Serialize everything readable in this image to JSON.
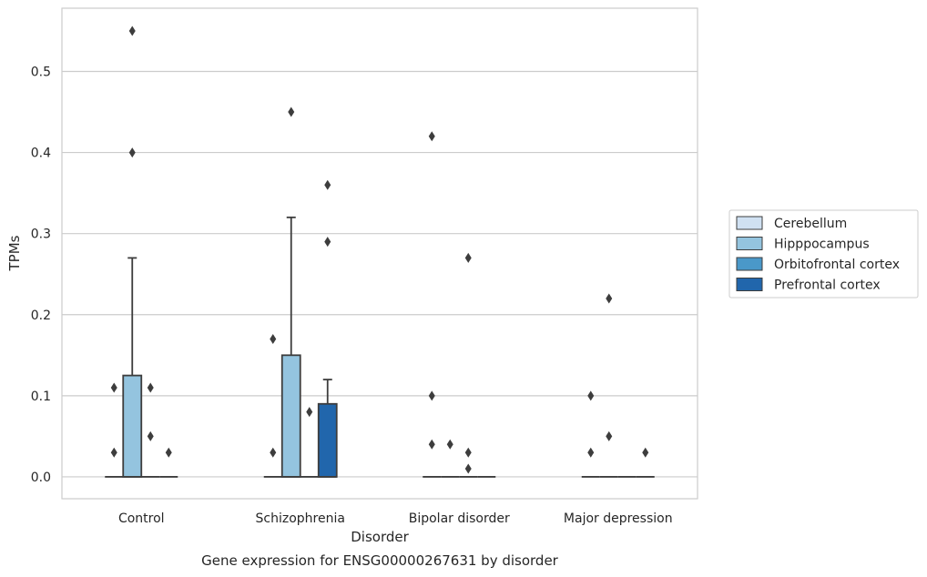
{
  "caption": "Gene expression for ENSG00000267631 by disorder",
  "chart_data": {
    "type": "boxplot",
    "xlabel": "Disorder",
    "ylabel": "TPMs",
    "ylim": [
      -0.027,
      0.578
    ],
    "yticks": [
      0.0,
      0.1,
      0.2,
      0.3,
      0.4,
      0.5
    ],
    "ytick_labels": [
      "0.0",
      "0.1",
      "0.2",
      "0.3",
      "0.4",
      "0.5"
    ],
    "grid": true,
    "legend_position": "right",
    "categories": [
      "Control",
      "Schizophrenia",
      "Bipolar disorder",
      "Major depression"
    ],
    "series": [
      {
        "name": "Cerebellum",
        "color": "#d0e1f2",
        "boxes": [
          {
            "q1": 0,
            "median": 0,
            "q3": 0,
            "whisker_low": 0,
            "whisker_high": 0,
            "outliers": [
              0.03,
              0.11
            ]
          },
          {
            "q1": 0,
            "median": 0,
            "q3": 0,
            "whisker_low": 0,
            "whisker_high": 0,
            "outliers": [
              0.03,
              0.17
            ]
          },
          {
            "q1": 0,
            "median": 0,
            "q3": 0,
            "whisker_low": 0,
            "whisker_high": 0,
            "outliers": [
              0.04,
              0.1,
              0.42
            ]
          },
          {
            "q1": 0,
            "median": 0,
            "q3": 0,
            "whisker_low": 0,
            "whisker_high": 0,
            "outliers": [
              0.03,
              0.1
            ]
          }
        ]
      },
      {
        "name": "Hipppocampus",
        "color": "#94c4df",
        "boxes": [
          {
            "q1": 0,
            "median": 0,
            "q3": 0.125,
            "whisker_low": 0,
            "whisker_high": 0.27,
            "outliers": [
              0.4,
              0.55
            ]
          },
          {
            "q1": 0,
            "median": 0,
            "q3": 0.15,
            "whisker_low": 0,
            "whisker_high": 0.32,
            "outliers": [
              0.45
            ]
          },
          {
            "q1": 0,
            "median": 0,
            "q3": 0,
            "whisker_low": 0,
            "whisker_high": 0,
            "outliers": [
              0.04
            ]
          },
          {
            "q1": 0,
            "median": 0,
            "q3": 0,
            "whisker_low": 0,
            "whisker_high": 0,
            "outliers": [
              0.05,
              0.22
            ]
          }
        ]
      },
      {
        "name": "Orbitofrontal cortex",
        "color": "#4a98c9",
        "boxes": [
          {
            "q1": 0,
            "median": 0,
            "q3": 0,
            "whisker_low": 0,
            "whisker_high": 0,
            "outliers": [
              0.05,
              0.11
            ]
          },
          {
            "q1": 0,
            "median": 0,
            "q3": 0,
            "whisker_low": 0,
            "whisker_high": 0,
            "outliers": [
              0.08
            ]
          },
          {
            "q1": 0,
            "median": 0,
            "q3": 0,
            "whisker_low": 0,
            "whisker_high": 0,
            "outliers": [
              0.01,
              0.03,
              0.27
            ]
          },
          {
            "q1": 0,
            "median": 0,
            "q3": 0,
            "whisker_low": 0,
            "whisker_high": 0,
            "outliers": []
          }
        ]
      },
      {
        "name": "Prefrontal cortex",
        "color": "#2166ac",
        "boxes": [
          {
            "q1": 0,
            "median": 0,
            "q3": 0,
            "whisker_low": 0,
            "whisker_high": 0,
            "outliers": [
              0.03
            ]
          },
          {
            "q1": 0,
            "median": 0,
            "q3": 0.09,
            "whisker_low": 0,
            "whisker_high": 0.12,
            "outliers": [
              0.29,
              0.36
            ]
          },
          {
            "q1": 0,
            "median": 0,
            "q3": 0,
            "whisker_low": 0,
            "whisker_high": 0,
            "outliers": []
          },
          {
            "q1": 0,
            "median": 0,
            "q3": 0,
            "whisker_low": 0,
            "whisker_high": 0,
            "outliers": [
              0.03
            ]
          }
        ]
      }
    ]
  }
}
